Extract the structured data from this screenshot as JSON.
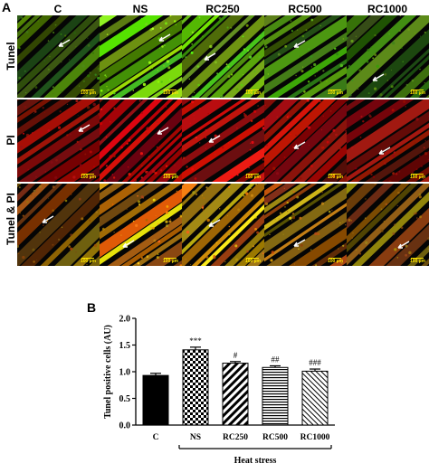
{
  "panel_a_label": "A",
  "panel_b_label": "B",
  "columns": [
    "C",
    "NS",
    "RC250",
    "RC500",
    "RC1000"
  ],
  "rows": [
    "Tunel",
    "PI",
    "Tunel & PI"
  ],
  "scale_bar_text": "100 µm",
  "colors": {
    "tunel_green": "#7fd32a",
    "pi_red": "#d61a1a",
    "merged_yellow": "#c8b020"
  },
  "chart_data": {
    "type": "bar",
    "categories": [
      "C",
      "NS",
      "RC250",
      "RC500",
      "RC1000"
    ],
    "values": [
      0.93,
      1.41,
      1.16,
      1.08,
      1.01
    ],
    "errors": [
      0.04,
      0.05,
      0.03,
      0.03,
      0.04
    ],
    "significance": [
      "",
      "***",
      "#",
      "##",
      "###"
    ],
    "ylabel": "Tunel positive cells (AU)",
    "xgroup_label": "Heat stress",
    "ylim": [
      0,
      2.0
    ],
    "yticks": [
      "0.0",
      "0.5",
      "1.0",
      "1.5",
      "2.0"
    ],
    "patterns": [
      "solid-black",
      "checker",
      "diag-thick",
      "horiz-lines",
      "diag-thin"
    ]
  }
}
